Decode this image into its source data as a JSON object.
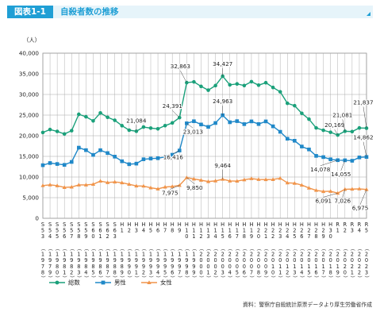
{
  "header": {
    "figure_tag": "図表1-1",
    "title": "自殺者数の推移"
  },
  "source_note": "資料：警察庁自殺統計原票データより厚生労働省作成",
  "colors": {
    "total": "#1aa07a",
    "male": "#1f88c8",
    "female": "#f0944a",
    "grid": "#a8a8a8",
    "header_bg": "#e6f4fa",
    "accent": "#1f9fd5"
  },
  "chart_data": {
    "type": "line",
    "unit_label": "（人）",
    "ylim": [
      0,
      40000
    ],
    "yticks": [
      "0",
      "5,000",
      "10,000",
      "15,000",
      "20,000",
      "25,000",
      "30,000",
      "35,000",
      "40,000"
    ],
    "grid": true,
    "legend_position": "bottom-left",
    "categories": [
      {
        "era": "S53",
        "year": "1978"
      },
      {
        "era": "S54",
        "year": "1979"
      },
      {
        "era": "S55",
        "year": "1980"
      },
      {
        "era": "S56",
        "year": "1981"
      },
      {
        "era": "S57",
        "year": "1982"
      },
      {
        "era": "S58",
        "year": "1983"
      },
      {
        "era": "S59",
        "year": "1984"
      },
      {
        "era": "S60",
        "year": "1985"
      },
      {
        "era": "S61",
        "year": "1986"
      },
      {
        "era": "S62",
        "year": "1987"
      },
      {
        "era": "S63",
        "year": "1988"
      },
      {
        "era": "H1",
        "year": "1989"
      },
      {
        "era": "H2",
        "year": "1990"
      },
      {
        "era": "H3",
        "year": "1991"
      },
      {
        "era": "H4",
        "year": "1992"
      },
      {
        "era": "H5",
        "year": "1993"
      },
      {
        "era": "H6",
        "year": "1994"
      },
      {
        "era": "H7",
        "year": "1995"
      },
      {
        "era": "H8",
        "year": "1996"
      },
      {
        "era": "H9",
        "year": "1997"
      },
      {
        "era": "H10",
        "year": "1998"
      },
      {
        "era": "H11",
        "year": "1999"
      },
      {
        "era": "H12",
        "year": "2000"
      },
      {
        "era": "H13",
        "year": "2001"
      },
      {
        "era": "H14",
        "year": "2002"
      },
      {
        "era": "H15",
        "year": "2003"
      },
      {
        "era": "H16",
        "year": "2004"
      },
      {
        "era": "H17",
        "year": "2005"
      },
      {
        "era": "H18",
        "year": "2006"
      },
      {
        "era": "H19",
        "year": "2007"
      },
      {
        "era": "H20",
        "year": "2008"
      },
      {
        "era": "H21",
        "year": "2009"
      },
      {
        "era": "H22",
        "year": "2010"
      },
      {
        "era": "H23",
        "year": "2011"
      },
      {
        "era": "H24",
        "year": "2012"
      },
      {
        "era": "H25",
        "year": "2013"
      },
      {
        "era": "H26",
        "year": "2014"
      },
      {
        "era": "H27",
        "year": "2015"
      },
      {
        "era": "H28",
        "year": "2016"
      },
      {
        "era": "H29",
        "year": "2017"
      },
      {
        "era": "H30",
        "year": "2018"
      },
      {
        "era": "R1",
        "year": "2019"
      },
      {
        "era": "R2",
        "year": "2020"
      },
      {
        "era": "R3",
        "year": "2021"
      },
      {
        "era": "R4",
        "year": "2022"
      },
      {
        "era": "R5",
        "year": "2023"
      }
    ],
    "series": [
      {
        "name": "総数",
        "key": "total",
        "marker": "circle",
        "values": [
          20788,
          21503,
          21048,
          20434,
          21228,
          25202,
          24596,
          23599,
          25524,
          24460,
          23742,
          22436,
          21346,
          21084,
          22104,
          21851,
          21679,
          22445,
          23104,
          24391,
          32863,
          33048,
          31957,
          31042,
          32143,
          34427,
          32325,
          32552,
          32155,
          33093,
          32249,
          32845,
          31690,
          30651,
          27858,
          27283,
          25427,
          24025,
          21897,
          21321,
          20840,
          20169,
          21081,
          21007,
          21881,
          21837
        ]
      },
      {
        "name": "男性",
        "key": "male",
        "marker": "square",
        "values": [
          12859,
          13386,
          13155,
          12942,
          13654,
          17116,
          16508,
          15356,
          16497,
          15802,
          14934,
          13818,
          13102,
          13242,
          14296,
          14468,
          14560,
          14874,
          15393,
          16416,
          23013,
          23512,
          22727,
          22144,
          23080,
          24963,
          23272,
          23540,
          22813,
          23478,
          22831,
          23472,
          22283,
          20955,
          19273,
          18787,
          17386,
          16681,
          15121,
          14826,
          14290,
          14078,
          14055,
          13939,
          14746,
          14862
        ]
      },
      {
        "name": "女性",
        "key": "female",
        "marker": "triangle",
        "values": [
          7929,
          8117,
          7893,
          7492,
          7574,
          8086,
          8088,
          8243,
          9027,
          8658,
          8808,
          8618,
          8244,
          7842,
          7808,
          7383,
          7119,
          7571,
          7711,
          7975,
          9850,
          9536,
          9230,
          8898,
          9063,
          9464,
          9053,
          9012,
          9342,
          9615,
          9418,
          9373,
          9407,
          9696,
          8585,
          8496,
          8041,
          7344,
          6776,
          6495,
          6550,
          6091,
          7026,
          7068,
          7135,
          6975
        ]
      }
    ],
    "annotations": [
      {
        "series": "total",
        "index": 13,
        "text": "21,084"
      },
      {
        "series": "total",
        "index": 19,
        "text": "24,391"
      },
      {
        "series": "total",
        "index": 20,
        "text": "32,863"
      },
      {
        "series": "total",
        "index": 25,
        "text": "34,427"
      },
      {
        "series": "total",
        "index": 41,
        "text": "20,169"
      },
      {
        "series": "total",
        "index": 42,
        "text": "21,081"
      },
      {
        "series": "total",
        "index": 45,
        "text": "21,837"
      },
      {
        "series": "male",
        "index": 19,
        "text": "16,416"
      },
      {
        "series": "male",
        "index": 20,
        "text": "23,013"
      },
      {
        "series": "male",
        "index": 25,
        "text": "24,963"
      },
      {
        "series": "male",
        "index": 41,
        "text": "14,078"
      },
      {
        "series": "male",
        "index": 42,
        "text": "14,055"
      },
      {
        "series": "male",
        "index": 45,
        "text": "14,862"
      },
      {
        "series": "female",
        "index": 19,
        "text": "7,975"
      },
      {
        "series": "female",
        "index": 20,
        "text": "9,850"
      },
      {
        "series": "female",
        "index": 25,
        "text": "9,464"
      },
      {
        "series": "female",
        "index": 41,
        "text": "6,091"
      },
      {
        "series": "female",
        "index": 42,
        "text": "7,026"
      },
      {
        "series": "female",
        "index": 45,
        "text": "6,975"
      }
    ]
  }
}
